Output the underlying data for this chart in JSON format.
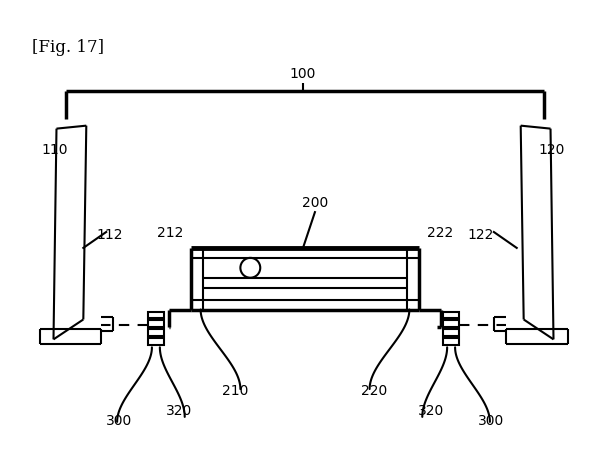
{
  "bg_color": "#ffffff",
  "line_color": "#000000",
  "title": "[Fig. 17]",
  "lw": 1.5,
  "lw2": 2.5
}
